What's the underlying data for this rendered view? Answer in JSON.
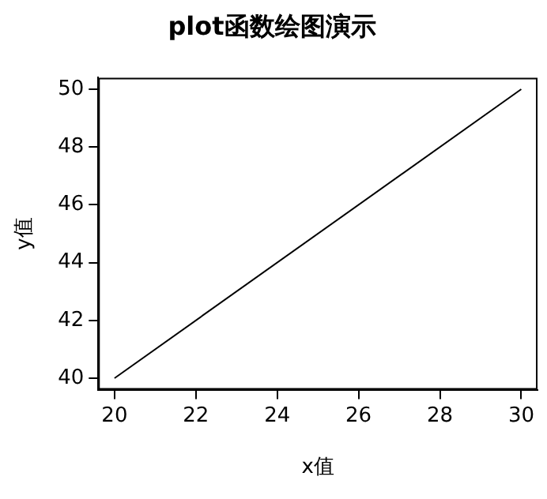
{
  "chart_data": {
    "type": "line",
    "title": "plot函数绘图演示",
    "xlabel": "x值",
    "ylabel": "y值",
    "x": [
      20,
      30
    ],
    "series": [
      {
        "color": "#000000",
        "values": [
          40,
          50
        ]
      }
    ],
    "xlim": [
      19.6,
      30.4
    ],
    "ylim": [
      39.6,
      50.4
    ],
    "xticks": [
      20,
      22,
      24,
      26,
      28,
      30
    ],
    "yticks": [
      40,
      42,
      44,
      46,
      48,
      50
    ],
    "grid": false,
    "legend": false,
    "marker": "none",
    "line_style": "solid"
  }
}
